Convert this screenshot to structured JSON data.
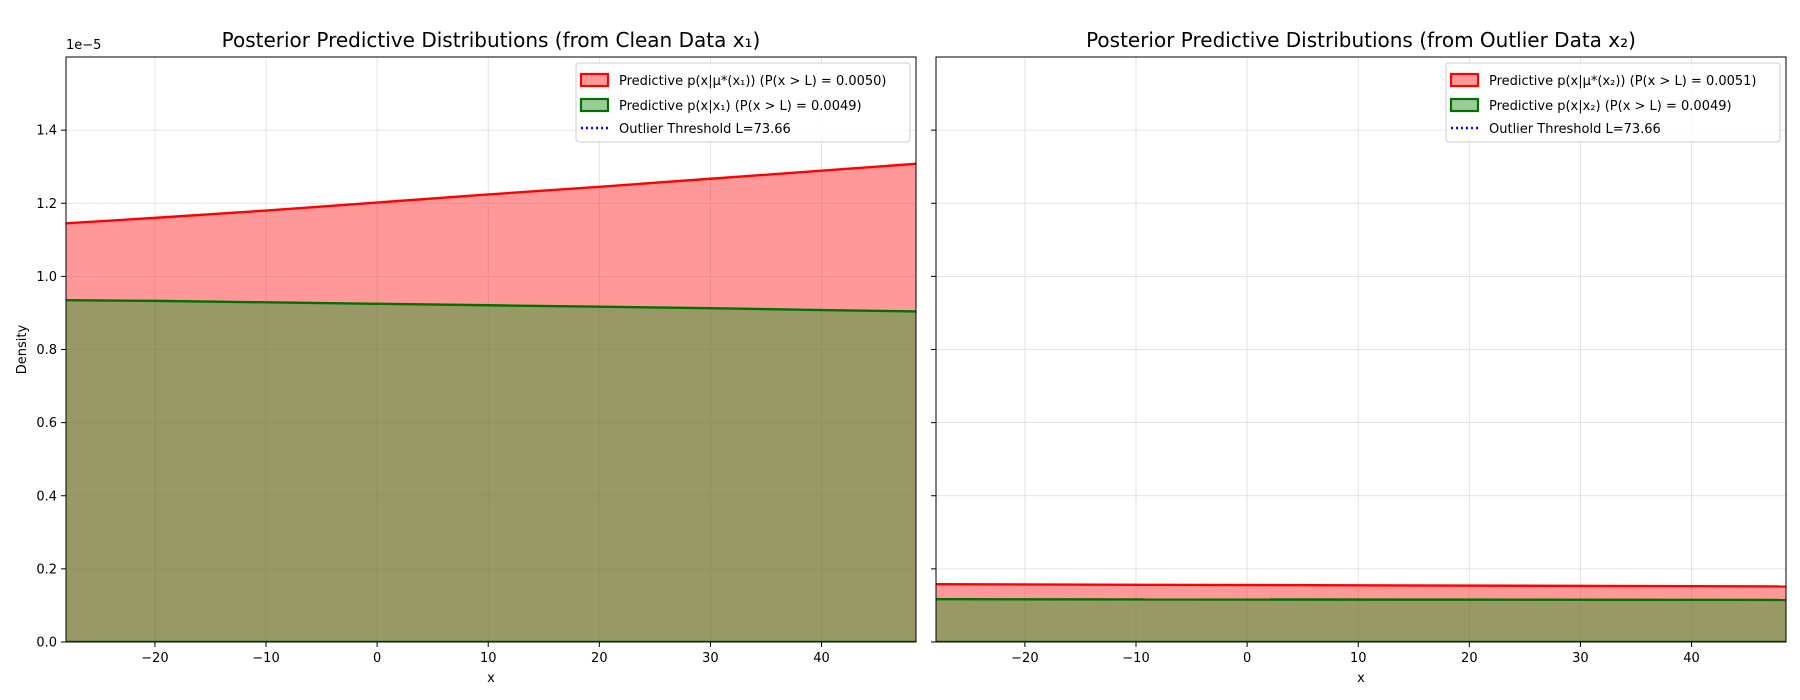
{
  "chart_data": [
    {
      "type": "area",
      "title": "Posterior Predictive Distributions (from Clean Data x₁)",
      "xlabel": "x",
      "ylabel": "Density",
      "y_offset_text": "1e−5",
      "xlim": [
        -28,
        48.5
      ],
      "ylim": [
        0,
        1.6
      ],
      "x_ticks": [
        "−20",
        "−10",
        "0",
        "10",
        "20",
        "30",
        "40"
      ],
      "x_tick_values": [
        -20,
        -10,
        0,
        10,
        20,
        30,
        40
      ],
      "y_ticks": [
        "0.0",
        "0.2",
        "0.4",
        "0.6",
        "0.8",
        "1.0",
        "1.2",
        "1.4"
      ],
      "y_tick_values": [
        0,
        0.2,
        0.4,
        0.6,
        0.8,
        1.0,
        1.2,
        1.4
      ],
      "grid": true,
      "legend_position": "top-right",
      "series": [
        {
          "name": "Predictive p(x|μ*(x₁)) (P(x > L) = 0.0050)",
          "color": "#ff0000",
          "fill": "#ff9999",
          "x": [
            -28,
            -20,
            -10,
            0,
            10,
            20,
            30,
            40,
            48.5
          ],
          "values": [
            1.145,
            1.16,
            1.18,
            1.202,
            1.224,
            1.245,
            1.267,
            1.289,
            1.308
          ]
        },
        {
          "name": "Predictive p(x|x₁) (P(x > L) = 0.0049)",
          "color": "#007000",
          "fill": "#99cc99",
          "x": [
            -28,
            -20,
            -10,
            0,
            10,
            20,
            30,
            40,
            48.5
          ],
          "values": [
            0.935,
            0.933,
            0.929,
            0.925,
            0.921,
            0.917,
            0.913,
            0.908,
            0.904
          ]
        }
      ],
      "threshold_label": "Outlier Threshold L=73.66",
      "threshold_color": "#0000ff"
    },
    {
      "type": "area",
      "title": "Posterior Predictive Distributions (from Outlier Data x₂)",
      "xlabel": "x",
      "ylabel": "",
      "xlim": [
        -28,
        48.5
      ],
      "ylim": [
        0,
        1.6
      ],
      "x_ticks": [
        "−20",
        "−10",
        "0",
        "10",
        "20",
        "30",
        "40"
      ],
      "x_tick_values": [
        -20,
        -10,
        0,
        10,
        20,
        30,
        40
      ],
      "y_tick_values": [
        0,
        0.2,
        0.4,
        0.6,
        0.8,
        1.0,
        1.2,
        1.4
      ],
      "grid": true,
      "legend_position": "top-right",
      "series": [
        {
          "name": "Predictive p(x|μ*(x₂)) (P(x > L) = 0.0051)",
          "color": "#ff0000",
          "fill": "#ff9999",
          "x": [
            -28,
            48.5
          ],
          "values": [
            0.158,
            0.152
          ]
        },
        {
          "name": "Predictive p(x|x₂) (P(x > L) = 0.0049)",
          "color": "#007000",
          "fill": "#99cc99",
          "x": [
            -28,
            48.5
          ],
          "values": [
            0.117,
            0.115
          ]
        }
      ],
      "threshold_label": "Outlier Threshold L=73.66",
      "threshold_color": "#0000ff"
    }
  ]
}
